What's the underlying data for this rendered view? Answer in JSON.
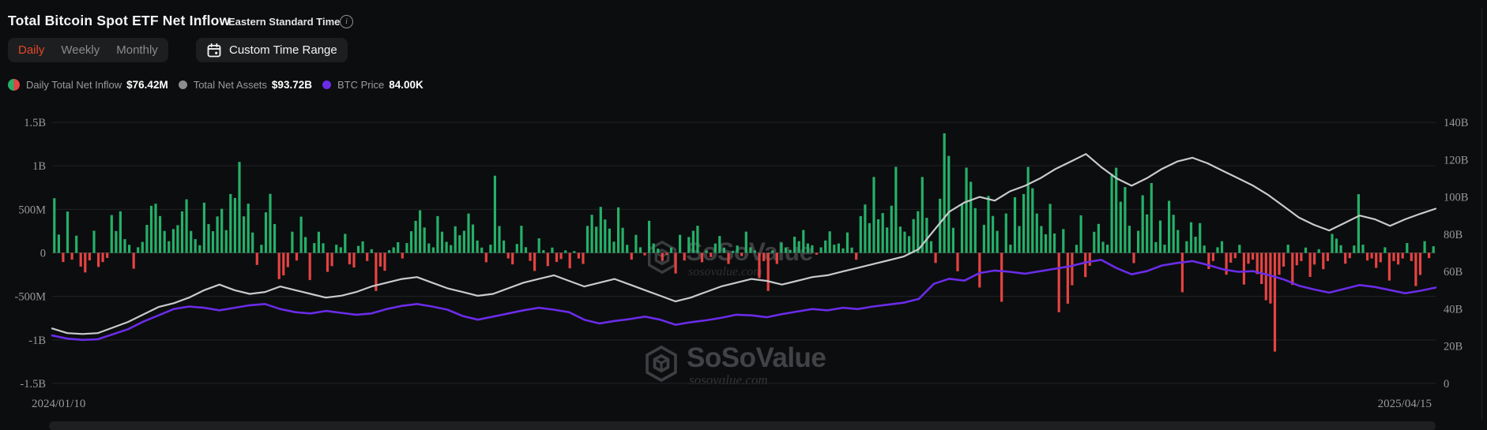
{
  "header": {
    "title": "Total Bitcoin Spot ETF Net Inflow",
    "timezone": "Eastern Standard Time",
    "info_tooltip": "i"
  },
  "controls": {
    "tabs": [
      {
        "label": "Daily",
        "active": true
      },
      {
        "label": "Weekly",
        "active": false
      },
      {
        "label": "Monthly",
        "active": false
      }
    ],
    "custom_time_range_label": "Custom Time Range"
  },
  "legend": {
    "items": [
      {
        "label": "Daily Total Net Inflow",
        "value": "$76.42M",
        "marker": "split-green-red"
      },
      {
        "label": "Total Net Assets",
        "value": "$93.72B",
        "marker": "gray-dot",
        "color": "#8b8d8f"
      },
      {
        "label": "BTC Price",
        "value": "84.00K",
        "marker": "purple-dot",
        "color": "#6a2ce8"
      }
    ]
  },
  "watermark": {
    "brand": "SoSoValue",
    "domain": "sosovalue.com"
  },
  "chart_data": {
    "type": "bar",
    "subtype": "bar+line combo",
    "x_range": [
      "2024/01/10",
      "2025/04/15"
    ],
    "grid_on": true,
    "legend_position": "top-left",
    "left_axis": {
      "ticks": [
        "1.5B",
        "1B",
        "500M",
        "0",
        "-500M",
        "-1B",
        "-1.5B"
      ],
      "tick_values_M": [
        1500,
        1000,
        500,
        0,
        -500,
        -1000,
        -1500
      ],
      "ylim_M": [
        -1500,
        1500
      ]
    },
    "right_axis": {
      "ticks": [
        "140B",
        "120B",
        "100B",
        "80B",
        "60B",
        "40B",
        "20B",
        "0"
      ],
      "tick_values_B": [
        140,
        120,
        100,
        80,
        60,
        40,
        20,
        0
      ],
      "ylim_B": [
        0,
        140
      ]
    },
    "colors": {
      "bar_positive": "#25b069",
      "bar_negative": "#e64343",
      "net_assets_line": "#c9cacb",
      "btc_line": "#6a2ce8",
      "grid": "#222324",
      "zero_line": "#3c3d3e"
    },
    "series": [
      {
        "name": "Daily Total Net Inflow",
        "type": "bar",
        "axis": "left",
        "unit": "USD millions",
        "latest": "$76.42M",
        "values_M": [
          628,
          210,
          -105,
          475,
          -78,
          198,
          -158,
          -225,
          -86,
          255,
          -162,
          -106,
          -58,
          434,
          251,
          477,
          158,
          92,
          -182,
          64,
          126,
          322,
          541,
          565,
          423,
          252,
          134,
          274,
          318,
          477,
          615,
          252,
          158,
          88,
          576,
          331,
          248,
          419,
          507,
          261,
          676,
          631,
          1045,
          420,
          566,
          234,
          -139,
          93,
          466,
          678,
          332,
          -302,
          -258,
          -164,
          243,
          -88,
          416,
          182,
          -312,
          112,
          243,
          111,
          -218,
          -152,
          93,
          64,
          218,
          -132,
          -168,
          81,
          132,
          -94,
          42,
          -438,
          -158,
          -206,
          32,
          63,
          122,
          -64,
          112,
          248,
          368,
          489,
          292,
          108,
          63,
          422,
          243,
          127,
          89,
          305,
          203,
          254,
          452,
          326,
          142,
          61,
          -108,
          94,
          886,
          308,
          142,
          -64,
          -132,
          102,
          312,
          65,
          -92,
          -208,
          168,
          31,
          -152,
          61,
          -105,
          -71,
          28,
          -178,
          21,
          -65,
          -127,
          310,
          438,
          301,
          528,
          383,
          279,
          129,
          523,
          288,
          92,
          -78,
          207,
          64,
          -28,
          368,
          108,
          48,
          -91,
          -22,
          62,
          -237,
          208,
          -88,
          182,
          254,
          312,
          -108,
          28,
          -48,
          108,
          194,
          61,
          -127,
          24,
          84,
          -38,
          244,
          64,
          28,
          -288,
          -94,
          -438,
          28,
          -127,
          118,
          62,
          34,
          186,
          134,
          263,
          108,
          88,
          -21,
          63,
          142,
          247,
          94,
          108,
          52,
          235,
          61,
          -79,
          422,
          556,
          342,
          872,
          386,
          458,
          292,
          542,
          988,
          302,
          244,
          192,
          388,
          479,
          872,
          403,
          134,
          -116,
          622,
          1374,
          1114,
          288,
          -211,
          561,
          979,
          817,
          514,
          -398,
          323,
          654,
          424,
          253,
          -562,
          452,
          94,
          639,
          308,
          676,
          987,
          742,
          452,
          308,
          214,
          563,
          223,
          -682,
          274,
          -584,
          -372,
          92,
          431,
          -278,
          -148,
          242,
          333,
          128,
          94,
          908,
          978,
          588,
          756,
          312,
          -118,
          254,
          662,
          442,
          802,
          124,
          372,
          94,
          598,
          438,
          263,
          -452,
          134,
          352,
          186,
          342,
          84,
          -186,
          -94,
          64,
          134,
          -251,
          -112,
          -62,
          92,
          -364,
          -124,
          -78,
          -244,
          -358,
          -544,
          -582,
          -1134,
          -252,
          -158,
          94,
          -368,
          -142,
          -94,
          61,
          -276,
          -134,
          42,
          -188,
          -94,
          218,
          164,
          88,
          -124,
          -61,
          84,
          674,
          94,
          -88,
          -64,
          -172,
          -108,
          64,
          -318,
          -94,
          -134,
          -64,
          112,
          -94,
          -382,
          -254,
          134,
          -61,
          76.42
        ]
      },
      {
        "name": "Total Net Assets",
        "type": "line",
        "axis": "right",
        "unit": "USD billions",
        "latest": "$93.72B",
        "values_B": [
          29.5,
          27,
          26.5,
          27,
          30,
          33,
          37,
          41,
          43,
          46,
          50,
          53,
          50,
          48,
          49,
          52,
          50,
          48,
          46,
          47,
          49,
          52,
          54,
          56,
          57,
          54,
          51,
          49,
          47,
          48,
          51,
          54,
          56,
          58,
          55,
          52,
          54,
          56,
          53,
          50,
          47,
          44,
          46,
          49,
          52,
          54,
          56,
          55,
          53,
          55,
          57,
          58,
          60,
          62,
          64,
          66,
          68,
          72,
          82,
          92,
          97,
          100,
          98,
          103,
          106,
          110,
          115,
          119,
          123,
          116,
          110,
          106,
          110,
          115,
          119,
          121,
          118,
          114,
          110,
          106,
          101,
          95,
          89,
          85,
          82,
          86,
          90,
          88,
          84.5,
          88,
          91,
          93.7
        ]
      },
      {
        "name": "BTC Price",
        "type": "line",
        "axis": "hidden",
        "unit": "USD thousands",
        "latest": "84.00K",
        "ylim_K": [
          8,
          215
        ],
        "values_K": [
          46,
          43.5,
          42.5,
          43,
          47,
          51,
          57,
          62,
          67,
          69,
          68,
          66,
          68,
          70,
          71,
          67,
          64.5,
          63.5,
          65.5,
          64,
          62.5,
          63.5,
          67,
          69.5,
          71,
          69,
          66.5,
          61.5,
          58.5,
          61,
          63.5,
          66,
          68,
          66.5,
          64.5,
          58.5,
          55.5,
          57.5,
          59,
          61,
          58.5,
          54.5,
          56.5,
          58,
          60,
          62.5,
          62,
          60.5,
          63,
          65,
          67,
          66,
          68,
          67,
          69,
          70.5,
          72,
          75,
          87,
          91,
          89.5,
          95.5,
          97.5,
          96.5,
          95,
          97,
          99,
          101,
          104,
          106,
          99.5,
          94.5,
          97,
          101.5,
          103.5,
          105,
          102,
          98.5,
          96.5,
          97,
          94,
          90.5,
          85.5,
          82.5,
          80,
          83,
          86,
          84.5,
          82,
          79.5,
          81.5,
          84
        ]
      }
    ]
  }
}
